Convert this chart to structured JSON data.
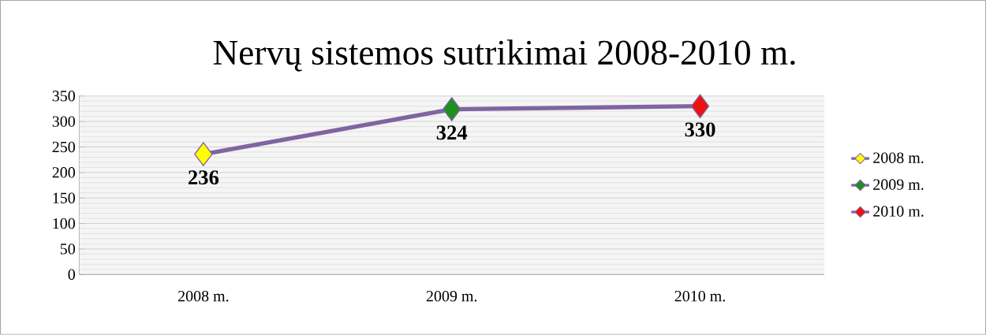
{
  "chart_data": {
    "type": "line",
    "title": "Nervų sistemos sutrikimai 2008-2010 m.",
    "categories": [
      "2008 m.",
      "2009 m.",
      "2010 m."
    ],
    "series": [
      {
        "color": "#8064a2",
        "marker": "none",
        "values": [
          236,
          324,
          330
        ],
        "value_labels": [
          "236",
          "324",
          "330"
        ]
      },
      {
        "type": "scatter",
        "name": "2008 m.",
        "color": "#ffff00",
        "marker": "diamond",
        "values": [
          236,
          null,
          null
        ]
      },
      {
        "type": "scatter",
        "name": "2009 m.",
        "color": "#1f8f1f",
        "marker": "diamond",
        "values": [
          null,
          324,
          null
        ]
      },
      {
        "type": "scatter",
        "name": "2010 m.",
        "color": "#ee1111",
        "marker": "diamond",
        "values": [
          null,
          null,
          330
        ]
      }
    ],
    "ylim": [
      0,
      350
    ],
    "yticks": [
      0,
      50,
      100,
      150,
      200,
      250,
      300,
      350
    ],
    "grid": "y",
    "legend": "right",
    "line_style": "solid"
  }
}
